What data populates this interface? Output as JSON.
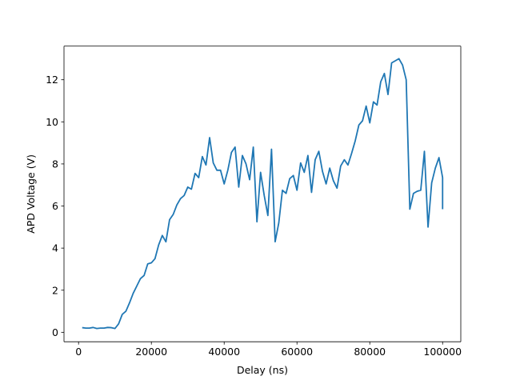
{
  "chart_data": {
    "type": "line",
    "title": "",
    "xlabel": "Delay (ns)",
    "ylabel": "APD Voltage (V)",
    "xlim": [
      -4000,
      105000
    ],
    "ylim": [
      -0.45,
      13.6
    ],
    "xticks": [
      0,
      20000,
      40000,
      60000,
      80000,
      100000
    ],
    "xtick_labels": [
      "0",
      "20000",
      "40000",
      "60000",
      "80000",
      "100000"
    ],
    "yticks": [
      0,
      2,
      4,
      6,
      8,
      10,
      12
    ],
    "ytick_labels": [
      "0",
      "2",
      "4",
      "6",
      "8",
      "10",
      "12"
    ],
    "grid": false,
    "legend": "none",
    "series": [
      {
        "color": "#1f77b4",
        "x": [
          1000,
          2000,
          3000,
          4000,
          5000,
          6000,
          7000,
          8000,
          9000,
          10000,
          11000,
          12000,
          13000,
          14000,
          15000,
          16000,
          17000,
          18000,
          19000,
          20000,
          21000,
          22000,
          23000,
          24000,
          25000,
          26000,
          27000,
          28000,
          29000,
          30000,
          31000,
          32000,
          33000,
          34000,
          35000,
          36000,
          37000,
          38000,
          39000,
          40000,
          41000,
          42000,
          43000,
          44000,
          45000,
          46000,
          47000,
          48000,
          49000,
          50000,
          51000,
          52000,
          53000,
          54000,
          55000,
          56000,
          57000,
          58000,
          59000,
          60000,
          61000,
          62000,
          63000,
          64000,
          65000,
          66000,
          67000,
          68000,
          69000,
          70000,
          71000,
          72000,
          73000,
          74000,
          75000,
          76000,
          77000,
          78000,
          79000,
          80000,
          81000,
          82000,
          83000,
          84000,
          85000,
          86000,
          87000,
          88000,
          89000,
          90000,
          91000,
          92000,
          93000,
          94000,
          95000,
          96000,
          97000,
          98000,
          99000,
          100000
        ],
        "y": [
          0.22,
          0.2,
          0.2,
          0.23,
          0.18,
          0.2,
          0.2,
          0.23,
          0.22,
          0.18,
          0.4,
          0.85,
          1.0,
          1.4,
          1.85,
          2.2,
          2.55,
          2.7,
          3.25,
          3.3,
          3.5,
          4.15,
          4.6,
          4.3,
          5.35,
          5.6,
          6.05,
          6.35,
          6.5,
          6.9,
          6.8,
          7.55,
          7.35,
          8.35,
          7.95,
          9.25,
          8.05,
          7.7,
          7.7,
          7.05,
          7.7,
          8.55,
          8.8,
          6.9,
          8.4,
          8.0,
          7.25,
          8.8,
          5.25,
          7.6,
          6.5,
          5.55,
          8.7,
          4.3,
          5.2,
          6.75,
          6.6,
          7.3,
          7.45,
          6.75,
          8.05,
          7.6,
          8.4,
          6.65,
          8.2,
          8.6,
          7.65,
          7.05,
          7.8,
          7.2,
          6.85,
          7.9,
          8.2,
          7.95,
          8.5,
          9.1,
          9.85,
          10.05,
          10.75,
          9.95,
          10.95,
          10.8,
          11.9,
          12.3,
          11.3,
          12.8,
          12.9,
          13.0,
          12.7,
          12.0,
          5.85,
          6.6,
          6.7,
          6.75,
          8.6,
          5.0,
          7.1,
          7.8,
          8.3,
          7.35
        ],
        "x_tail": [
          100000
        ],
        "y_tail": [
          5.85
        ]
      }
    ]
  }
}
